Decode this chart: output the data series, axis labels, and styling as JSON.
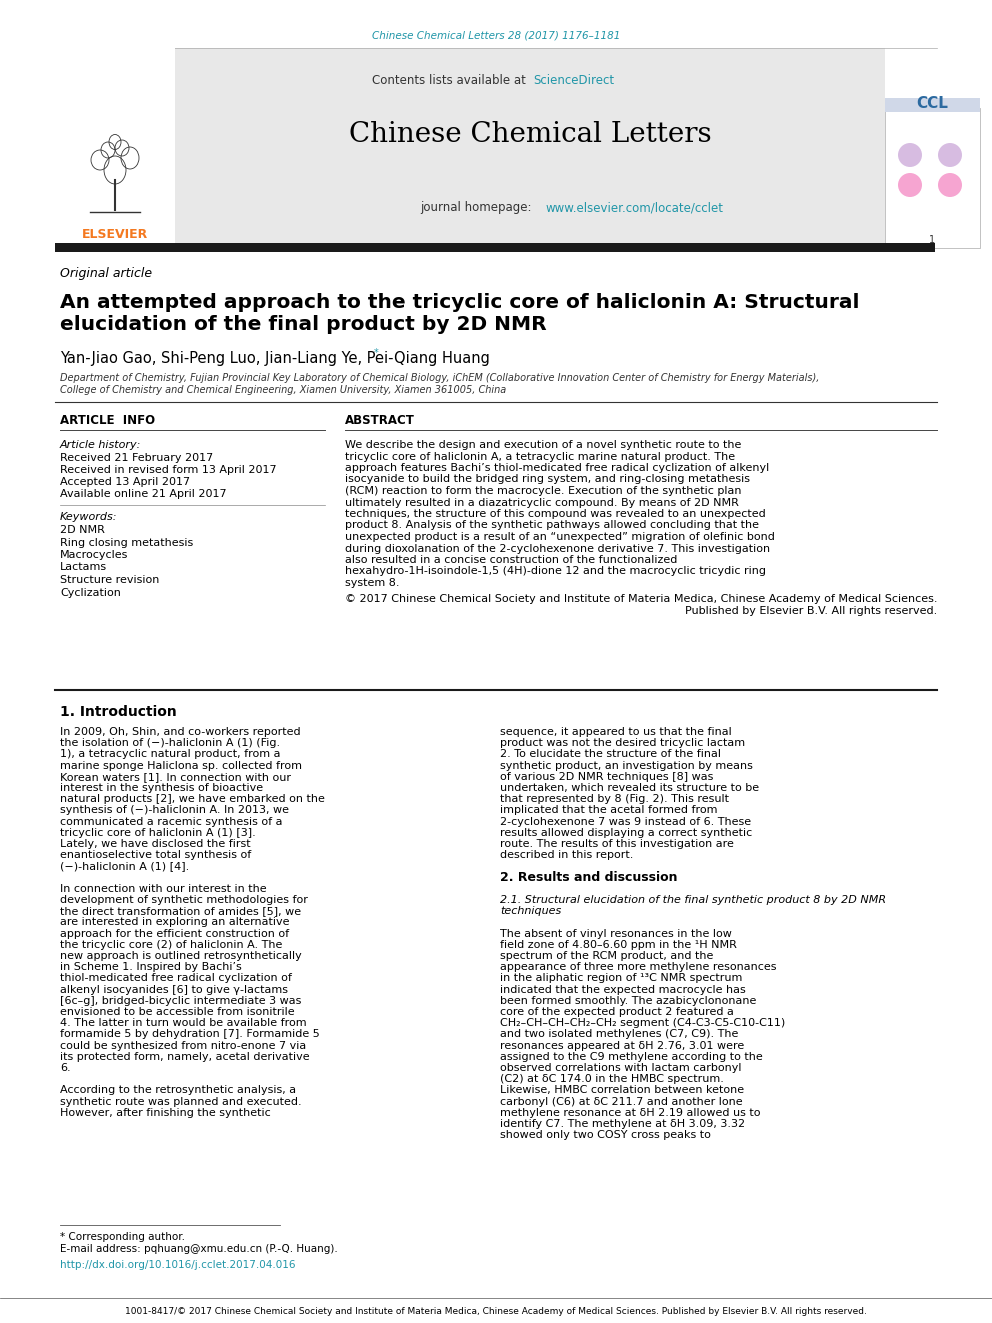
{
  "journal_ref": "Chinese Chemical Letters 28 (2017) 1176–1181",
  "journal_ref_color": "#2196a8",
  "sciencedirect_color": "#2196a8",
  "journal_title": "Chinese Chemical Letters",
  "journal_homepage_url": "www.elsevier.com/locate/cclet",
  "article_type": "Original article",
  "paper_title_line1": "An attempted approach to the tricyclic core of haliclonin A: Structural",
  "paper_title_line2": "elucidation of the final product by 2D NMR",
  "authors": "Yan-Jiao Gao, Shi-Peng Luo, Jian-Liang Ye, Pei-Qiang Huang",
  "affiliation_line1": "Department of Chemistry, Fujian Provincial Key Laboratory of Chemical Biology, iChEM (Collaborative Innovation Center of Chemistry for Energy Materials),",
  "affiliation_line2": "College of Chemistry and Chemical Engineering, Xiamen University, Xiamen 361005, China",
  "article_history_label": "Article history:",
  "received_date": "Received 21 February 2017",
  "revised_date": "Received in revised form 13 April 2017",
  "accepted_date": "Accepted 13 April 2017",
  "online_date": "Available online 21 April 2017",
  "keywords_label": "Keywords:",
  "keywords": [
    "2D NMR",
    "Ring closing metathesis",
    "Macrocycles",
    "Lactams",
    "Structure revision",
    "Cyclization"
  ],
  "abstract_text": "We describe the design and execution of a novel synthetic route to the tricyclic core of haliclonin A, a tetracyclic marine natural product. The approach features Bachi’s thiol-medicated free radical cyclization of alkenyl isocyanide to build the bridged ring system, and ring-closing metathesis (RCM) reaction to form the macrocycle. Execution of the synthetic plan ultimately resulted in a diazatricyclic compound. By means of 2D NMR techniques, the structure of this compound was revealed to an unexpected product 8. Analysis of the synthetic pathways allowed concluding that the unexpected product is a result of an “unexpected” migration of olefinic bond during dioxolanation of the 2-cyclohexenone derivative 7. This investigation also resulted in a concise construction of the functionalized hexahydro-1H-isoindole-1,5 (4H)-dione 12 and the macrocyclic tricydic ring system 8.",
  "copyright_line1": "© 2017 Chinese Chemical Society and Institute of Materia Medica, Chinese Academy of Medical Sciences.",
  "copyright_line2": "Published by Elsevier B.V. All rights reserved.",
  "intro_title": "1. Introduction",
  "intro_p1": "   In 2009, Oh, Shin, and co-workers reported the isolation of (−)-haliclonin A (1) (Fig. 1), a tetracyclic natural product, from a marine sponge Haliclona sp. collected from Korean waters [1]. In connection with our interest in the synthesis of bioactive natural products [2], we have embarked on the synthesis of (−)-haliclonin A. In 2013, we communicated a racemic synthesis of a tricyclic core of haliclonin A (1) [3]. Lately, we have disclosed the first enantioselective total synthesis of (−)-haliclonin A (1) [4].",
  "intro_p2": "   In connection with our interest in the development of synthetic methodologies for the direct transformation of amides [5], we are interested in exploring an alternative approach for the efficient construction of the tricyclic core (2) of haliclonin A. The new approach is outlined retrosynthetically in Scheme 1. Inspired by Bachi’s thiol-medicated free radical cyclization of alkenyl isocyanides [6] to give γ-lactams [6c–g], bridged-bicyclic intermediate 3 was envisioned to be accessible from isonitrile 4. The latter in turn would be available from formamide 5 by dehydration [7]. Formamide 5 could be synthesized from nitro-enone 7 via its protected form, namely, acetal derivative 6.",
  "intro_p3": "   According to the retrosynthetic analysis, a synthetic route was planned and executed. However, after finishing the synthetic",
  "col2_p1": "sequence, it appeared to us that the final product was not the desired tricyclic lactam 2. To elucidate the structure of the final synthetic product, an investigation by means of various 2D NMR techniques [8] was undertaken, which revealed its structure to be that represented by 8 (Fig. 2). This result implicated that the acetal formed from 2-cyclohexenone 7 was 9 instead of 6. These results allowed displaying a correct synthetic route. The results of this investigation are described in this report.",
  "results_title": "2. Results and discussion",
  "results_sub": "2.1. Structural elucidation of the final synthetic product 8 by 2D NMR\ntechniques",
  "col2_p2": "   The absent of vinyl resonances in the low field zone of 4.80–6.60 ppm in the ¹H NMR spectrum of the RCM product, and the appearance of three more methylene resonances in the aliphatic region of ¹³C NMR spectrum indicated that the expected macrocycle has been formed smoothly. The azabicyclononane core of the expected product 2 featured a CH₂–CH–CH–CH₂–CH₂ segment (C4-C3-C5-C10-C11) and two isolated methylenes (C7, C9). The resonances appeared at δH 2.76, 3.01 were assigned to the C9 methylene according to the observed correlations with lactam carbonyl (C2) at δC 174.0 in the HMBC spectrum. Likewise, HMBC correlation between ketone carbonyl (C6) at δC 211.7 and another lone methylene resonance at δH 2.19 allowed us to identify C7. The methylene at δH 3.09, 3.32 showed only two COSY cross peaks to",
  "footnote_star": "* Corresponding author.",
  "footnote_email": "E-mail address: pqhuang@xmu.edu.cn (P.-Q. Huang).",
  "doi_text": "http://dx.doi.org/10.1016/j.cclet.2017.04.016",
  "issn_text": "1001-8417/© 2017 Chinese Chemical Society and Institute of Materia Medica, Chinese Academy of Medical Sciences. Published by Elsevier B.V. All rights reserved.",
  "bg_gray": "#e8e8e8",
  "black_bar": "#1a1a1a",
  "link_color": "#2196a8",
  "elsevier_orange": "#f47920"
}
